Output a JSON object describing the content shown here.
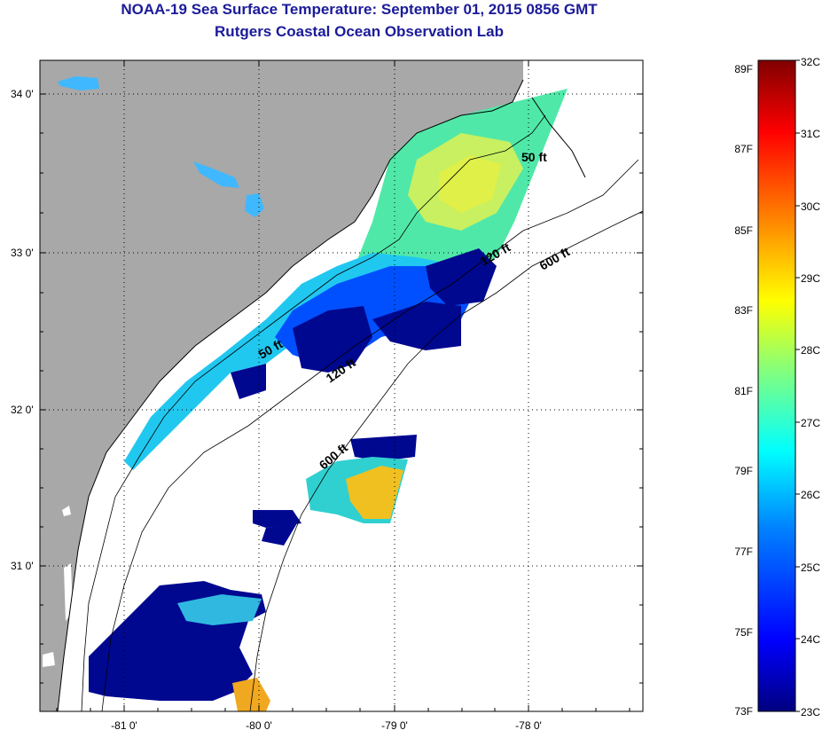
{
  "header": {
    "title": "NOAA-19 Sea Surface Temperature:  September 01, 2015 0856 GMT",
    "subtitle": "Rutgers Coastal Ocean Observation Lab"
  },
  "map": {
    "x_ticks": [
      "-81 0'",
      "-80 0'",
      "-79 0'",
      "-78 0'"
    ],
    "y_ticks": [
      "34 0'",
      "33 0'",
      "32 0'",
      "31 0'"
    ],
    "contour_labels": [
      "50 ft",
      "120 ft",
      "600 ft",
      "50 ft",
      "120 ft",
      "600 ft"
    ],
    "colors": {
      "land": "#a8a8a8",
      "ocean_nodata": "#ffffff",
      "coast": "#000000"
    }
  },
  "colorbar": {
    "fahrenheit": [
      "89F",
      "87F",
      "85F",
      "83F",
      "81F",
      "79F",
      "77F",
      "75F",
      "73F"
    ],
    "celsius": [
      "32C",
      "31C",
      "30C",
      "29C",
      "28C",
      "27C",
      "26C",
      "25C",
      "24C",
      "23C"
    ],
    "colors": [
      "#000080",
      "#0000ff",
      "#0080ff",
      "#00ffff",
      "#80ff80",
      "#ffff00",
      "#ff8000",
      "#ff0000",
      "#800000"
    ]
  }
}
